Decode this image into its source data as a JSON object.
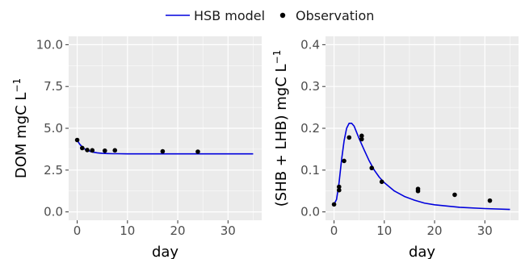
{
  "legend": {
    "model_label": "HSB model",
    "obs_label": "Observation"
  },
  "colors": {
    "model_line": "#0000dd",
    "points": "#000000",
    "panel": "#ebebeb"
  },
  "chart_data": [
    {
      "type": "line",
      "xlabel": "day",
      "ylabel": "DOM mgC L",
      "ylabel_superscript": "−1",
      "xlim": [
        -1.7,
        36.7
      ],
      "ylim": [
        -0.5,
        10.5
      ],
      "xticks": [
        0,
        10,
        20,
        30
      ],
      "xtick_labels": [
        "0",
        "10",
        "20",
        "30"
      ],
      "yticks": [
        0,
        2.5,
        5,
        7.5,
        10
      ],
      "ytick_labels": [
        "0.0",
        "2.5",
        "5.0",
        "7.5",
        "10.0"
      ],
      "grid": true,
      "series": [
        {
          "name": "HSB model",
          "kind": "line",
          "x": [
            0,
            0.5,
            1,
            1.5,
            2,
            3,
            4,
            5,
            6,
            7,
            8,
            10,
            12,
            15,
            20,
            25,
            30,
            35
          ],
          "y": [
            4.28,
            4.05,
            3.88,
            3.76,
            3.68,
            3.58,
            3.53,
            3.5,
            3.49,
            3.48,
            3.48,
            3.47,
            3.47,
            3.47,
            3.47,
            3.47,
            3.47,
            3.47
          ]
        },
        {
          "name": "Observation",
          "kind": "points",
          "x": [
            0,
            1,
            2,
            3,
            5.5,
            7.5,
            17,
            24
          ],
          "y": [
            4.3,
            3.82,
            3.7,
            3.68,
            3.66,
            3.68,
            3.62,
            3.6
          ]
        }
      ]
    },
    {
      "type": "line",
      "xlabel": "day",
      "ylabel": "(SHB + LHB) mgC L",
      "ylabel_superscript": "−1",
      "xlim": [
        -1.7,
        36.7
      ],
      "ylim": [
        -0.02,
        0.42
      ],
      "xticks": [
        0,
        10,
        20,
        30
      ],
      "xtick_labels": [
        "0",
        "10",
        "20",
        "30"
      ],
      "yticks": [
        0,
        0.1,
        0.2,
        0.3,
        0.4
      ],
      "ytick_labels": [
        "0.0",
        "0.1",
        "0.2",
        "0.3",
        "0.4"
      ],
      "grid": true,
      "series": [
        {
          "name": "HSB model",
          "kind": "line",
          "x": [
            0,
            0.5,
            1,
            1.5,
            2,
            2.5,
            3,
            3.5,
            4,
            4.5,
            5,
            6,
            7,
            8,
            9,
            10,
            12,
            14,
            16,
            18,
            20,
            25,
            30,
            35
          ],
          "y": [
            0.018,
            0.03,
            0.07,
            0.125,
            0.17,
            0.2,
            0.212,
            0.212,
            0.205,
            0.19,
            0.175,
            0.148,
            0.122,
            0.1,
            0.083,
            0.07,
            0.05,
            0.037,
            0.028,
            0.021,
            0.017,
            0.011,
            0.008,
            0.006
          ]
        },
        {
          "name": "Observation",
          "kind": "points",
          "x": [
            0,
            1,
            1,
            2,
            3,
            5.5,
            5.5,
            7.5,
            9.5,
            16.7,
            16.7,
            24,
            31
          ],
          "y": [
            0.018,
            0.052,
            0.06,
            0.122,
            0.178,
            0.182,
            0.174,
            0.105,
            0.072,
            0.055,
            0.05,
            0.041,
            0.027
          ]
        }
      ]
    }
  ]
}
